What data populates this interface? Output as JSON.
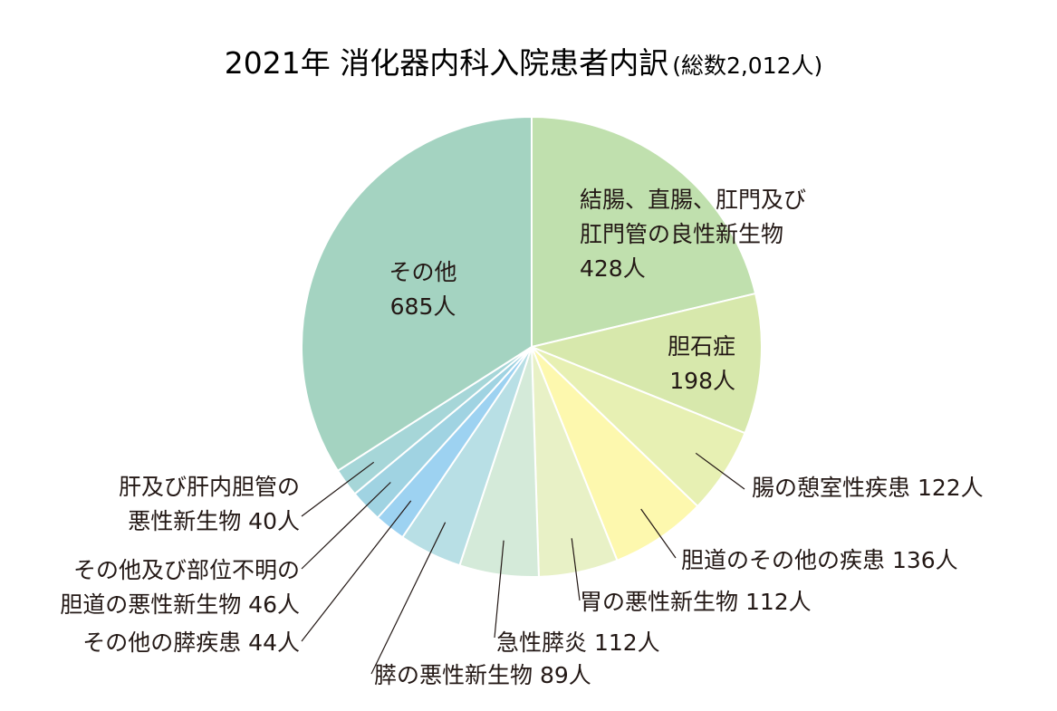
{
  "chart_data": {
    "type": "pie",
    "title": "2021年 消化器内科入院患者内訳",
    "subtitle": "(総数2,012人)",
    "unit": "人",
    "slices": [
      {
        "label": "結腸、直腸、肛門及び肛門管の良性新生物",
        "lines": [
          "結腸、直腸、肛門及び",
          "肛門管の良性新生物"
        ],
        "value": 428,
        "value_text": "428人",
        "color": "#c0e0ae"
      },
      {
        "label": "胆石症",
        "lines": [
          "胆石症"
        ],
        "value": 198,
        "value_text": "198人",
        "color": "#d7e8ac"
      },
      {
        "label": "腸の憩室性疾患",
        "lines": [
          "腸の憩室性疾患 122人"
        ],
        "value": 122,
        "value_text": "122人",
        "color": "#e7f0b3"
      },
      {
        "label": "胆道のその他の疾患",
        "lines": [
          "胆道のその他の疾患 136人"
        ],
        "value": 136,
        "value_text": "136人",
        "color": "#fdf8ae"
      },
      {
        "label": "胃の悪性新生物",
        "lines": [
          "胃の悪性新生物 112人"
        ],
        "value": 112,
        "value_text": "112人",
        "color": "#e8f1c6"
      },
      {
        "label": "急性膵炎",
        "lines": [
          "急性膵炎 112人"
        ],
        "value": 112,
        "value_text": "112人",
        "color": "#d4ead9"
      },
      {
        "label": "膵の悪性新生物",
        "lines": [
          "膵の悪性新生物 89人"
        ],
        "value": 89,
        "value_text": "89人",
        "color": "#b8dfe5"
      },
      {
        "label": "その他の膵疾患",
        "lines": [
          "その他の膵疾患 44人"
        ],
        "value": 44,
        "value_text": "44人",
        "color": "#9dd2f1"
      },
      {
        "label": "その他及び部位不明の胆道の悪性新生物",
        "lines": [
          "その他及び部位不明の",
          "胆道の悪性新生物 46人"
        ],
        "value": 46,
        "value_text": "46人",
        "color": "#a0d3e2"
      },
      {
        "label": "肝及び肝内胆管の悪性新生物",
        "lines": [
          "肝及び肝内胆管の",
          "悪性新生物 40人"
        ],
        "value": 40,
        "value_text": "40人",
        "color": "#a6d6d8"
      },
      {
        "label": "その他",
        "lines": [
          "その他"
        ],
        "value": 685,
        "value_text": "685人",
        "color": "#a4d3c1"
      }
    ]
  }
}
